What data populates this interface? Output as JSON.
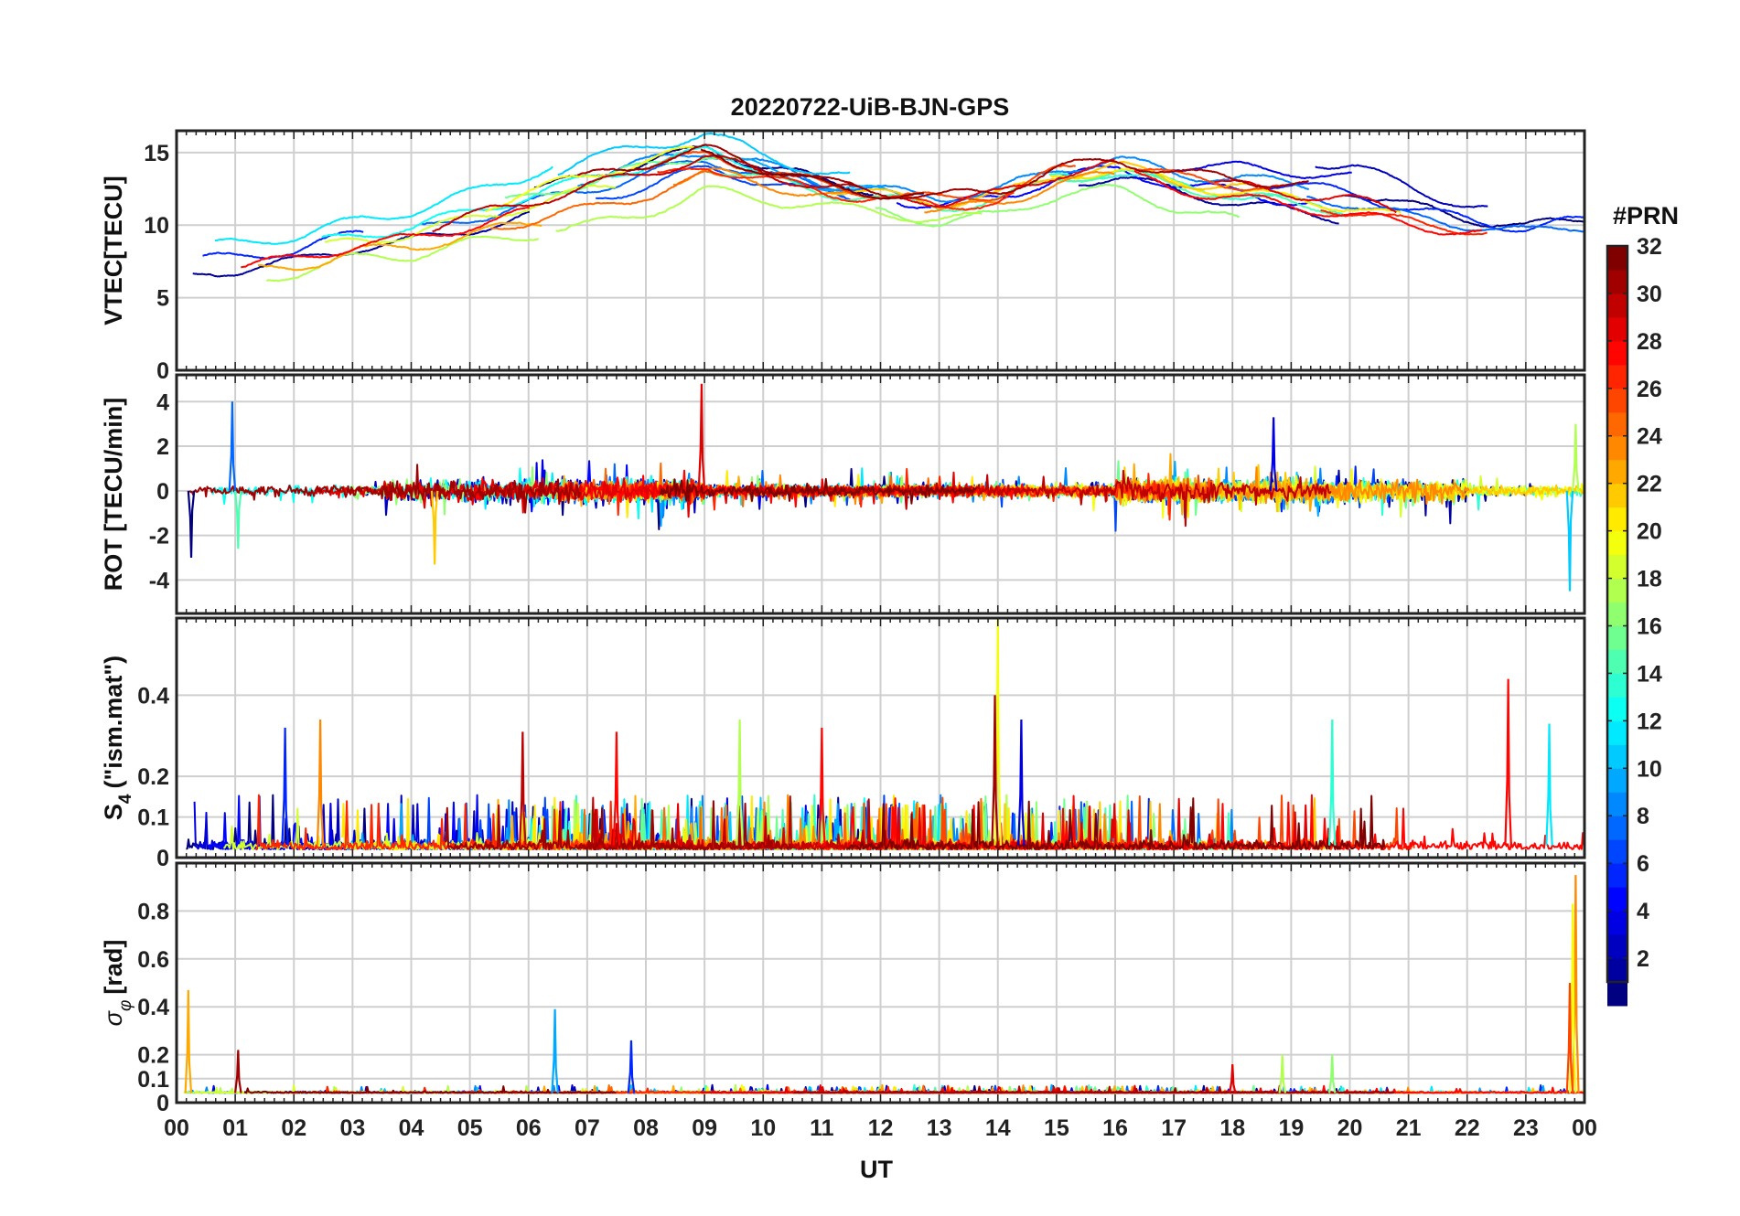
{
  "chart_data": {
    "type": "line",
    "title": "20220722-UiB-BJN-GPS",
    "xlabel": "UT",
    "x_tick_labels": [
      "00",
      "01",
      "02",
      "03",
      "04",
      "05",
      "06",
      "07",
      "08",
      "09",
      "10",
      "11",
      "12",
      "13",
      "14",
      "15",
      "16",
      "17",
      "18",
      "19",
      "20",
      "21",
      "22",
      "23",
      "00"
    ],
    "xlim": [
      0,
      24
    ],
    "colorbar": {
      "label": "#PRN",
      "range": [
        1,
        32
      ],
      "tick_values": [
        2,
        4,
        6,
        8,
        10,
        12,
        14,
        16,
        18,
        20,
        22,
        24,
        26,
        28,
        30,
        32
      ],
      "tick_labels": [
        "2",
        "4",
        "6",
        "8",
        "10",
        "12",
        "14",
        "16",
        "18",
        "20",
        "22",
        "24",
        "26",
        "28",
        "30",
        "32"
      ],
      "colormap": "jet"
    },
    "panels": [
      {
        "id": "vtec",
        "ylabel": "VTEC[TECU]",
        "ylim": [
          0,
          16.5
        ],
        "y_ticks": [
          0,
          5,
          10,
          15
        ],
        "y_tick_labels": [
          "0",
          "5",
          "10",
          "15"
        ],
        "envelope": {
          "hours": [
            0,
            1,
            2,
            3,
            4,
            5,
            6,
            7,
            8,
            9,
            10,
            11,
            12,
            13,
            14,
            15,
            16,
            17,
            18,
            19,
            20,
            21,
            22,
            23,
            24
          ],
          "typical": [
            7,
            7.5,
            8,
            9,
            9.5,
            10.5,
            11.5,
            12.5,
            13.5,
            14.5,
            13.5,
            12.5,
            12,
            11.5,
            12,
            13.5,
            14,
            13,
            12.5,
            12,
            11.5,
            10.5,
            10,
            9.5,
            10
          ],
          "spread": [
            1.5,
            1.5,
            1.5,
            1.5,
            1.8,
            2,
            2.5,
            3,
            3,
            2.5,
            2,
            1.5,
            1.2,
            1.5,
            1.5,
            1.5,
            1.8,
            2,
            2.5,
            3,
            3,
            2.5,
            1.5,
            1.2,
            1.5
          ]
        }
      },
      {
        "id": "rot",
        "ylabel": "ROT [TECU/min]",
        "ylim": [
          -5.5,
          5.2
        ],
        "y_ticks": [
          -4,
          -2,
          0,
          2,
          4
        ],
        "y_tick_labels": [
          "-4",
          "-2",
          "0",
          "2",
          "4"
        ],
        "peak_events": [
          {
            "hour": 0.25,
            "value": -3.0
          },
          {
            "hour": 0.95,
            "value": 4.0
          },
          {
            "hour": 1.05,
            "value": -2.6
          },
          {
            "hour": 4.4,
            "value": -3.3
          },
          {
            "hour": 8.95,
            "value": 4.8
          },
          {
            "hour": 18.7,
            "value": 3.3
          },
          {
            "hour": 23.75,
            "value": -4.5
          },
          {
            "hour": 23.85,
            "value": 3.0
          }
        ]
      },
      {
        "id": "s4",
        "ylabel": "S4 (\"ism.mat\")",
        "ylabel_main": "S",
        "ylabel_sub": "4",
        "ylabel_rest": "(\"ism.mat\")",
        "ylim": [
          0,
          0.59
        ],
        "y_ticks": [
          0,
          0.1,
          0.2,
          0.4
        ],
        "y_tick_labels": [
          "0",
          "0.1",
          "0.2",
          "0.4"
        ],
        "peak_events": [
          {
            "hour": 14.0,
            "value": 0.59,
            "prn": 20
          },
          {
            "hour": 13.95,
            "value": 0.4,
            "prn": 31
          },
          {
            "hour": 22.7,
            "value": 0.44,
            "prn": 28
          },
          {
            "hour": 1.85,
            "value": 0.32,
            "prn": 6
          },
          {
            "hour": 2.45,
            "value": 0.34,
            "prn": 24
          },
          {
            "hour": 5.9,
            "value": 0.31,
            "prn": 30
          },
          {
            "hour": 7.5,
            "value": 0.31,
            "prn": 28
          },
          {
            "hour": 9.6,
            "value": 0.34,
            "prn": 18
          },
          {
            "hour": 11.0,
            "value": 0.32,
            "prn": 28
          },
          {
            "hour": 14.4,
            "value": 0.34,
            "prn": 4
          },
          {
            "hour": 19.7,
            "value": 0.34,
            "prn": 14
          },
          {
            "hour": 23.4,
            "value": 0.33,
            "prn": 12
          }
        ]
      },
      {
        "id": "sigphi",
        "ylabel": "σφ[rad]",
        "ylabel_main": "σ",
        "ylabel_sub": "φ",
        "ylabel_rest": "[rad]",
        "ylim": [
          0,
          1.0
        ],
        "y_ticks": [
          0,
          0.1,
          0.2,
          0.4,
          0.6,
          0.8
        ],
        "y_tick_labels": [
          "0",
          "0.1",
          "0.2",
          "0.4",
          "0.6",
          "0.8"
        ],
        "peak_events": [
          {
            "hour": 0.2,
            "value": 0.47,
            "prn": 23
          },
          {
            "hour": 1.05,
            "value": 0.22,
            "prn": 31
          },
          {
            "hour": 6.45,
            "value": 0.39,
            "prn": 10
          },
          {
            "hour": 7.75,
            "value": 0.26,
            "prn": 6
          },
          {
            "hour": 18.0,
            "value": 0.16,
            "prn": 29
          },
          {
            "hour": 18.85,
            "value": 0.2,
            "prn": 18
          },
          {
            "hour": 19.7,
            "value": 0.2,
            "prn": 17
          },
          {
            "hour": 23.85,
            "value": 0.95,
            "prn": 24
          },
          {
            "hour": 23.8,
            "value": 0.83,
            "prn": 20
          },
          {
            "hour": 23.75,
            "value": 0.5,
            "prn": 26
          }
        ]
      }
    ]
  }
}
